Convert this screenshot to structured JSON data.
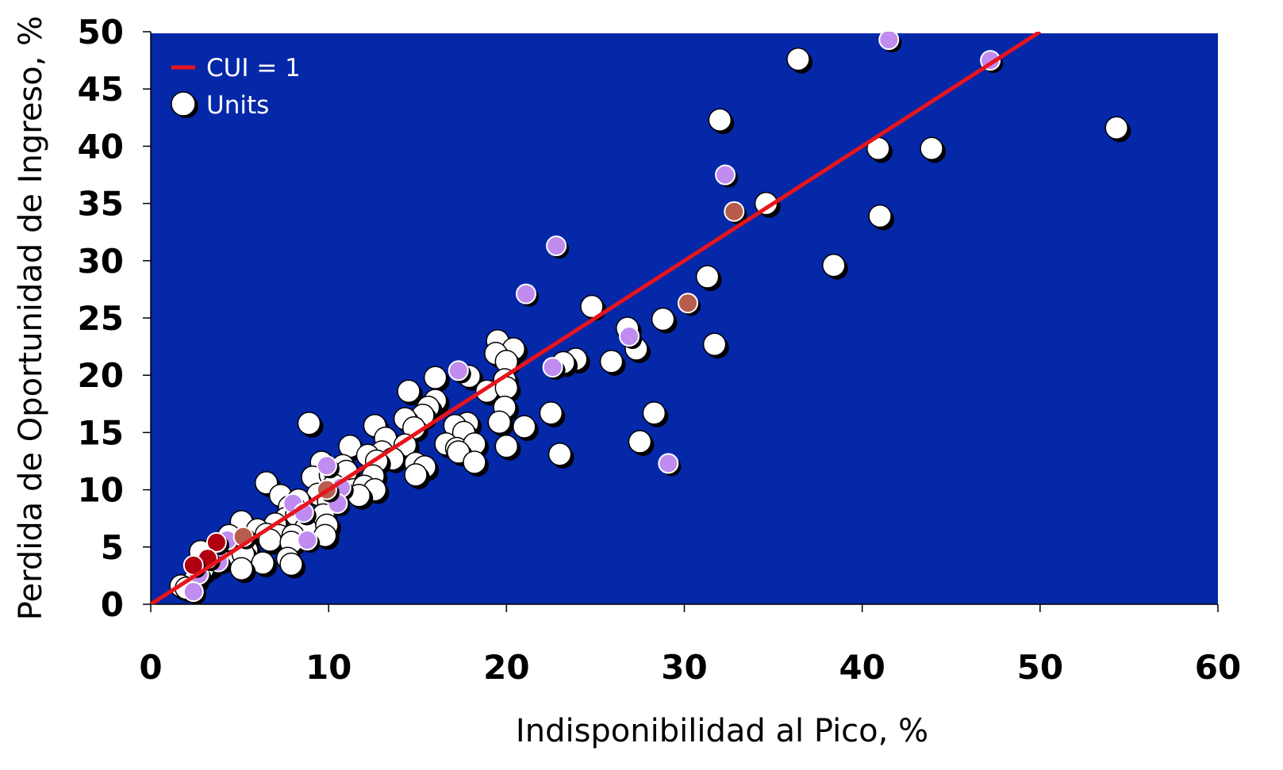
{
  "chart_data": {
    "type": "scatter",
    "title": "",
    "xlabel": "Indisponibilidad al Pico, %",
    "ylabel": "Perdida de Oportunidad de Ingreso, %",
    "xlim": [
      0,
      60
    ],
    "ylim": [
      0,
      50
    ],
    "x_ticks": [
      "0",
      "10",
      "20",
      "30",
      "40",
      "50",
      "60"
    ],
    "y_ticks": [
      "0",
      "5",
      "10",
      "15",
      "20",
      "25",
      "30",
      "35",
      "40",
      "45",
      "50"
    ],
    "grid": false,
    "legend_position": "top-left",
    "legend": {
      "line_label": "CUI = 1",
      "marker_label": "Units"
    },
    "colors": {
      "plot_background": "#0528A8",
      "reference_line": "#E8141C",
      "units": "#FFFFFF",
      "units_purple": "#C08CF0",
      "units_brown": "#B85C4E",
      "units_darkred": "#B00010"
    },
    "reference_line": {
      "label": "CUI = 1",
      "x": [
        0,
        50
      ],
      "y": [
        0,
        50
      ]
    },
    "series": [
      {
        "name": "Units",
        "color": "#FFFFFF",
        "points": [
          [
            36.4,
            47.6
          ],
          [
            54.3,
            41.6
          ],
          [
            32.0,
            42.3
          ],
          [
            40.9,
            39.8
          ],
          [
            43.9,
            39.8
          ],
          [
            34.6,
            35.0
          ],
          [
            41.0,
            33.9
          ],
          [
            38.4,
            29.6
          ],
          [
            31.3,
            28.6
          ],
          [
            24.8,
            26.0
          ],
          [
            28.8,
            24.9
          ],
          [
            26.8,
            24.1
          ],
          [
            31.7,
            22.7
          ],
          [
            27.3,
            22.3
          ],
          [
            19.5,
            23.0
          ],
          [
            20.4,
            22.3
          ],
          [
            23.9,
            21.4
          ],
          [
            23.2,
            21.1
          ],
          [
            25.9,
            21.2
          ],
          [
            19.4,
            21.9
          ],
          [
            20.0,
            21.2
          ],
          [
            19.9,
            19.6
          ],
          [
            17.9,
            19.9
          ],
          [
            16.0,
            19.8
          ],
          [
            18.9,
            18.6
          ],
          [
            14.5,
            18.6
          ],
          [
            20.0,
            18.9
          ],
          [
            16.0,
            17.8
          ],
          [
            15.6,
            17.2
          ],
          [
            15.3,
            16.5
          ],
          [
            19.9,
            17.2
          ],
          [
            22.5,
            16.7
          ],
          [
            28.3,
            16.7
          ],
          [
            14.3,
            16.2
          ],
          [
            17.8,
            15.8
          ],
          [
            19.6,
            15.9
          ],
          [
            21.0,
            15.5
          ],
          [
            8.9,
            15.8
          ],
          [
            12.6,
            15.6
          ],
          [
            14.8,
            15.4
          ],
          [
            17.1,
            15.6
          ],
          [
            17.6,
            15.0
          ],
          [
            13.2,
            14.5
          ],
          [
            16.6,
            14.0
          ],
          [
            20.0,
            13.8
          ],
          [
            27.5,
            14.2
          ],
          [
            23.0,
            13.1
          ],
          [
            13.0,
            13.3
          ],
          [
            17.2,
            13.6
          ],
          [
            18.2,
            14.0
          ],
          [
            11.2,
            13.8
          ],
          [
            14.3,
            13.9
          ],
          [
            12.2,
            13.0
          ],
          [
            13.6,
            12.7
          ],
          [
            17.3,
            13.3
          ],
          [
            18.2,
            12.4
          ],
          [
            14.9,
            12.3
          ],
          [
            9.6,
            12.4
          ],
          [
            10.8,
            12.1
          ],
          [
            12.7,
            12.5
          ],
          [
            15.4,
            12.0
          ],
          [
            14.9,
            11.3
          ],
          [
            9.1,
            11.1
          ],
          [
            10.1,
            11.3
          ],
          [
            11.0,
            11.6
          ],
          [
            12.5,
            11.2
          ],
          [
            6.5,
            10.6
          ],
          [
            10.3,
            10.4
          ],
          [
            11.4,
            10.0
          ],
          [
            12.0,
            10.3
          ],
          [
            12.6,
            10.0
          ],
          [
            11.7,
            9.5
          ],
          [
            9.4,
            9.6
          ],
          [
            7.3,
            9.5
          ],
          [
            8.3,
            9.1
          ],
          [
            10.0,
            9.0
          ],
          [
            7.8,
            8.5
          ],
          [
            9.7,
            7.8
          ],
          [
            7.6,
            7.5
          ],
          [
            8.2,
            7.8
          ],
          [
            5.1,
            7.2
          ],
          [
            7.0,
            7.0
          ],
          [
            8.7,
            6.6
          ],
          [
            9.9,
            6.9
          ],
          [
            6.0,
            6.5
          ],
          [
            6.5,
            6.1
          ],
          [
            7.2,
            6.0
          ],
          [
            4.4,
            6.0
          ],
          [
            8.0,
            6.0
          ],
          [
            9.8,
            6.0
          ],
          [
            6.7,
            5.6
          ],
          [
            5.3,
            5.6
          ],
          [
            4.2,
            5.2
          ],
          [
            3.6,
            5.0
          ],
          [
            7.9,
            5.4
          ],
          [
            5.4,
            4.7
          ],
          [
            2.8,
            4.6
          ],
          [
            4.1,
            4.0
          ],
          [
            7.7,
            4.0
          ],
          [
            5.2,
            4.4
          ],
          [
            3.5,
            3.7
          ],
          [
            6.3,
            3.6
          ],
          [
            7.9,
            3.5
          ],
          [
            5.1,
            3.1
          ],
          [
            3.3,
            3.4
          ],
          [
            2.9,
            3.0
          ],
          [
            2.5,
            2.2
          ],
          [
            1.7,
            1.6
          ],
          [
            2.0,
            1.4
          ]
        ]
      },
      {
        "color": "#C08CF0",
        "points": [
          [
            41.5,
            49.3
          ],
          [
            47.2,
            47.5
          ],
          [
            32.3,
            37.5
          ],
          [
            22.8,
            31.3
          ],
          [
            21.1,
            27.1
          ],
          [
            26.9,
            23.4
          ],
          [
            22.6,
            20.7
          ],
          [
            17.3,
            20.4
          ],
          [
            29.1,
            12.3
          ],
          [
            9.9,
            12.1
          ],
          [
            10.7,
            10.2
          ],
          [
            8.0,
            8.8
          ],
          [
            10.5,
            8.8
          ],
          [
            8.6,
            8.0
          ],
          [
            8.8,
            5.6
          ],
          [
            4.3,
            5.6
          ],
          [
            3.8,
            3.7
          ],
          [
            2.7,
            2.6
          ],
          [
            2.4,
            1.1
          ]
        ]
      },
      {
        "color": "#B85C4E",
        "points": [
          [
            32.8,
            34.3
          ],
          [
            30.2,
            26.3
          ],
          [
            9.9,
            10.0
          ],
          [
            5.2,
            5.9
          ]
        ]
      },
      {
        "color": "#B00010",
        "points": [
          [
            3.7,
            5.4
          ],
          [
            3.2,
            4.0
          ],
          [
            2.4,
            3.4
          ]
        ]
      }
    ]
  }
}
